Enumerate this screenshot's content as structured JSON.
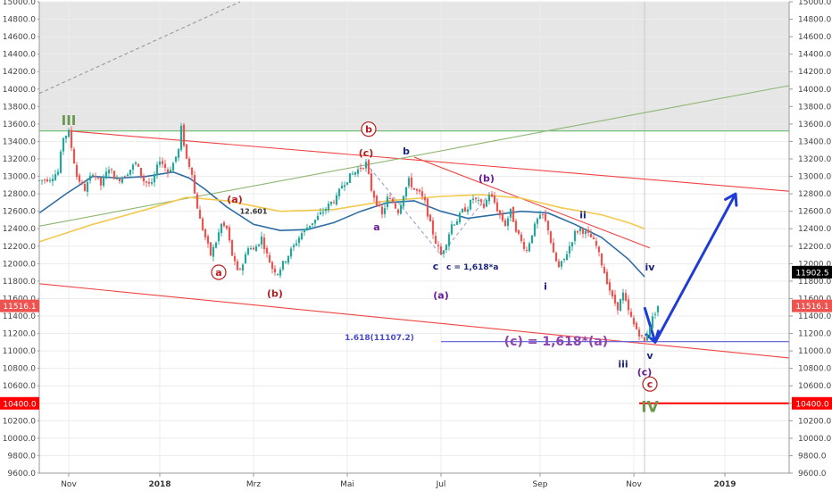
{
  "chart_data": {
    "type": "candlestick",
    "xlim": [
      0,
      280
    ],
    "ylim": [
      9600,
      15000
    ],
    "y_ticks": [
      9600,
      9800,
      10000,
      10200,
      10400,
      10600,
      10800,
      11000,
      11200,
      11400,
      11600,
      11800,
      12000,
      12200,
      12400,
      12600,
      12800,
      13000,
      13200,
      13400,
      13600,
      13800,
      14000,
      14200,
      14400,
      14600,
      14800,
      15000
    ],
    "y_tick_suffix": ".0",
    "x_ticks": [
      {
        "x": 11,
        "label": "Nov",
        "bold": false
      },
      {
        "x": 45,
        "label": "2018",
        "bold": true
      },
      {
        "x": 80,
        "label": "Mrz",
        "bold": false
      },
      {
        "x": 115,
        "label": "Mai",
        "bold": false
      },
      {
        "x": 150,
        "label": "Jul",
        "bold": false
      },
      {
        "x": 187,
        "label": "Sep",
        "bold": false
      },
      {
        "x": 222,
        "label": "Nov",
        "bold": false
      },
      {
        "x": 256,
        "label": "2019",
        "bold": true
      }
    ],
    "price_tags": [
      {
        "label": "11902.5",
        "value": 11902.5,
        "color": "#000000"
      },
      {
        "label": "11516.1",
        "value": 11516.1,
        "color": "#ef5350"
      },
      {
        "label": "10400.0",
        "value": 10400,
        "color": "#ff0000"
      }
    ],
    "anchors": [
      [
        0,
        12950
      ],
      [
        4,
        12980
      ],
      [
        7,
        13050
      ],
      [
        9,
        13450
      ],
      [
        11,
        13500
      ],
      [
        14,
        13000
      ],
      [
        17,
        12850
      ],
      [
        20,
        13050
      ],
      [
        23,
        12900
      ],
      [
        26,
        13100
      ],
      [
        29,
        12950
      ],
      [
        33,
        13050
      ],
      [
        36,
        13150
      ],
      [
        39,
        12950
      ],
      [
        42,
        12900
      ],
      [
        45,
        13200
      ],
      [
        48,
        13050
      ],
      [
        50,
        13150
      ],
      [
        52,
        13300
      ],
      [
        53,
        13550
      ],
      [
        55,
        13200
      ],
      [
        57,
        13050
      ],
      [
        58,
        12800
      ],
      [
        60,
        12500
      ],
      [
        62,
        12300
      ],
      [
        64,
        12100
      ],
      [
        66,
        12250
      ],
      [
        68,
        12450
      ],
      [
        70,
        12400
      ],
      [
        72,
        12100
      ],
      [
        74,
        11900
      ],
      [
        76,
        12000
      ],
      [
        78,
        12200
      ],
      [
        80,
        12150
      ],
      [
        83,
        12300
      ],
      [
        85,
        12100
      ],
      [
        87,
        11950
      ],
      [
        89,
        11900
      ],
      [
        91,
        12000
      ],
      [
        94,
        12150
      ],
      [
        96,
        12250
      ],
      [
        98,
        12350
      ],
      [
        101,
        12450
      ],
      [
        103,
        12500
      ],
      [
        106,
        12600
      ],
      [
        109,
        12700
      ],
      [
        111,
        12750
      ],
      [
        113,
        12900
      ],
      [
        116,
        13000
      ],
      [
        118,
        13050
      ],
      [
        120,
        13100
      ],
      [
        122,
        13150
      ],
      [
        124,
        12850
      ],
      [
        126,
        12700
      ],
      [
        128,
        12550
      ],
      [
        130,
        12750
      ],
      [
        132,
        12700
      ],
      [
        134,
        12600
      ],
      [
        136,
        12800
      ],
      [
        138,
        12950
      ],
      [
        140,
        12850
      ],
      [
        142,
        12800
      ],
      [
        144,
        12700
      ],
      [
        146,
        12450
      ],
      [
        148,
        12250
      ],
      [
        150,
        12100
      ],
      [
        152,
        12250
      ],
      [
        154,
        12450
      ],
      [
        156,
        12500
      ],
      [
        158,
        12600
      ],
      [
        160,
        12650
      ],
      [
        162,
        12750
      ],
      [
        164,
        12700
      ],
      [
        166,
        12650
      ],
      [
        168,
        12800
      ],
      [
        170,
        12700
      ],
      [
        172,
        12550
      ],
      [
        174,
        12450
      ],
      [
        176,
        12600
      ],
      [
        178,
        12400
      ],
      [
        180,
        12250
      ],
      [
        182,
        12150
      ],
      [
        184,
        12350
      ],
      [
        186,
        12500
      ],
      [
        188,
        12550
      ],
      [
        190,
        12400
      ],
      [
        192,
        12100
      ],
      [
        194,
        11950
      ],
      [
        196,
        12050
      ],
      [
        198,
        12200
      ],
      [
        200,
        12350
      ],
      [
        202,
        12400
      ],
      [
        204,
        12350
      ],
      [
        206,
        12300
      ],
      [
        208,
        12200
      ],
      [
        210,
        12000
      ],
      [
        212,
        11800
      ],
      [
        214,
        11600
      ],
      [
        216,
        11500
      ],
      [
        218,
        11650
      ],
      [
        220,
        11450
      ],
      [
        222,
        11300
      ],
      [
        224,
        11200
      ],
      [
        226,
        11100
      ],
      [
        228,
        11300
      ],
      [
        230,
        11450
      ],
      [
        231,
        11520
      ]
    ],
    "series": [
      {
        "name": "",
        "color": "#2e6da4",
        "points": [
          [
            0,
            12580
          ],
          [
            10,
            12800
          ],
          [
            20,
            13000
          ],
          [
            30,
            12980
          ],
          [
            40,
            13000
          ],
          [
            50,
            13050
          ],
          [
            56,
            12980
          ],
          [
            62,
            12850
          ],
          [
            70,
            12650
          ],
          [
            80,
            12450
          ],
          [
            90,
            12380
          ],
          [
            100,
            12390
          ],
          [
            110,
            12470
          ],
          [
            120,
            12600
          ],
          [
            130,
            12700
          ],
          [
            140,
            12720
          ],
          [
            150,
            12600
          ],
          [
            160,
            12520
          ],
          [
            170,
            12560
          ],
          [
            180,
            12600
          ],
          [
            190,
            12580
          ],
          [
            200,
            12450
          ],
          [
            210,
            12300
          ],
          [
            220,
            12050
          ],
          [
            226,
            11850
          ]
        ]
      },
      {
        "name": "",
        "color": "#f2c94c",
        "points": [
          [
            0,
            12250
          ],
          [
            20,
            12450
          ],
          [
            40,
            12620
          ],
          [
            55,
            12760
          ],
          [
            70,
            12720
          ],
          [
            90,
            12600
          ],
          [
            110,
            12620
          ],
          [
            130,
            12720
          ],
          [
            150,
            12770
          ],
          [
            165,
            12790
          ],
          [
            180,
            12750
          ],
          [
            195,
            12640
          ],
          [
            210,
            12560
          ],
          [
            220,
            12470
          ],
          [
            226,
            12400
          ]
        ]
      }
    ],
    "resistance_zone": [
      13520,
      15000
    ],
    "resistance_line": 13520,
    "trendlines": [
      {
        "color": "#ef4444",
        "points": [
          [
            11,
            13520
          ],
          [
            280,
            12830
          ]
        ]
      },
      {
        "color": "#ef4444",
        "points": [
          [
            0,
            11770
          ],
          [
            280,
            10920
          ]
        ]
      },
      {
        "color": "#ef4444",
        "points": [
          [
            140,
            13220
          ],
          [
            228,
            12180
          ]
        ]
      },
      {
        "color": "#8fb573",
        "points": [
          [
            0,
            12430
          ],
          [
            280,
            14040
          ]
        ]
      },
      {
        "color": "#999999",
        "dashed": true,
        "points": [
          [
            0,
            13950
          ],
          [
            75,
            15000
          ]
        ]
      },
      {
        "color": "#5b5bd6",
        "points": [
          [
            150,
            11107
          ],
          [
            280,
            11107
          ]
        ]
      },
      {
        "color": "#ff0000",
        "points": [
          [
            224,
            10400
          ],
          [
            280,
            10400
          ]
        ]
      },
      {
        "color": "#9aa3c7",
        "dashed": true,
        "points": [
          [
            122,
            13150
          ],
          [
            150,
            12100
          ]
        ]
      },
      {
        "color": "#9aa3c7",
        "dashed": true,
        "points": [
          [
            150,
            12100
          ],
          [
            168,
            12800
          ]
        ]
      }
    ],
    "forecast_path": {
      "color": "#1f3dd6",
      "points": [
        [
          226,
          11500
        ],
        [
          230,
          11100
        ],
        [
          260,
          12800
        ]
      ]
    },
    "labels": {
      "wave_III": "III",
      "wave_IV": "IV",
      "circled_a": "a",
      "circled_b": "b",
      "circled_c": "c",
      "paren_a_red": "(a)",
      "paren_b_red": "(b)",
      "paren_c_red": "(c)",
      "value_12601": "12.601",
      "small_a": "a",
      "small_b": "b",
      "small_c": "c",
      "c_equation": "c = 1,618*a",
      "paren_a_purple": "(a)",
      "paren_b_purple": "(b)",
      "paren_c_purple": "(c)",
      "roman_i": "i",
      "roman_ii": "ii",
      "roman_iii": "iii",
      "roman_iv": "iv",
      "roman_v": "v",
      "fib_line_label": "1.618(11107.2)",
      "c_projection": "(c) = 1,618*(a)"
    },
    "colors": {
      "up_candle": "#26a69a",
      "down_candle": "#ef5350",
      "elliott_green": "#6a994e",
      "elliott_red": "#b71c1c",
      "elliott_purple": "#6a1b9a",
      "elliott_navy": "#1a237e"
    }
  }
}
